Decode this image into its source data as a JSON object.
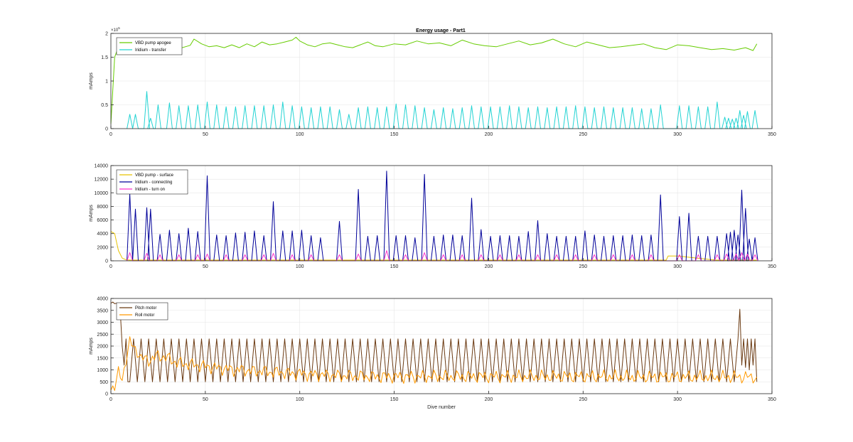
{
  "figure_title": "Energy usage - Part1",
  "colors": {
    "vbd_apogee": "#66cc00",
    "iridium_transfer": "#22d3d3",
    "vbd_surface": "#e6c200",
    "iridium_connecting": "#000099",
    "iridium_turn_on": "#ff33cc",
    "pitch_motor": "#6b3a12",
    "roll_motor": "#ff9900",
    "grid": "#e6e6e6",
    "axis": "#262626"
  },
  "chart_data": [
    {
      "type": "line",
      "title": "Energy usage - Part1",
      "xlabel": "",
      "ylabel": "mAmps",
      "xlim": [
        0,
        350
      ],
      "ylim": [
        0,
        200000
      ],
      "x_ticks": [
        0,
        50,
        100,
        150,
        200,
        250,
        300,
        350
      ],
      "y_ticks": [
        0,
        50000,
        100000,
        150000,
        200000
      ],
      "y_tick_labels": [
        "0",
        "0.5",
        "1",
        "1.5",
        "2"
      ],
      "y_exponent_label": "×10",
      "y_exponent_power": "5",
      "grid": true,
      "legend_position": "top-left",
      "series": [
        {
          "name": "VBD pump apogee",
          "pattern": "trend",
          "x": [
            0,
            2,
            4,
            8,
            12,
            18,
            24,
            30,
            36,
            42,
            44,
            48,
            52,
            56,
            60,
            64,
            68,
            72,
            76,
            80,
            84,
            88,
            92,
            96,
            98,
            100,
            104,
            108,
            112,
            116,
            120,
            124,
            128,
            132,
            136,
            140,
            144,
            150,
            156,
            162,
            168,
            174,
            180,
            186,
            192,
            198,
            204,
            210,
            216,
            222,
            228,
            234,
            240,
            246,
            252,
            258,
            264,
            270,
            276,
            282,
            288,
            294,
            300,
            306,
            312,
            318,
            324,
            330,
            336,
            340,
            342
          ],
          "y": [
            10000,
            150000,
            172000,
            168000,
            172000,
            175000,
            168000,
            172000,
            168000,
            175000,
            188000,
            178000,
            172000,
            174000,
            170000,
            176000,
            170000,
            178000,
            172000,
            182000,
            176000,
            178000,
            182000,
            186000,
            192000,
            184000,
            176000,
            172000,
            178000,
            180000,
            176000,
            172000,
            170000,
            176000,
            182000,
            174000,
            172000,
            178000,
            176000,
            184000,
            178000,
            180000,
            174000,
            186000,
            178000,
            174000,
            172000,
            178000,
            184000,
            176000,
            180000,
            188000,
            178000,
            172000,
            182000,
            176000,
            170000,
            172000,
            175000,
            178000,
            170000,
            166000,
            176000,
            174000,
            170000,
            166000,
            168000,
            165000,
            170000,
            164000,
            178000
          ]
        },
        {
          "name": "Iridium - transfer",
          "pattern": "spikes",
          "x": [
            10,
            13,
            19,
            21,
            25,
            31,
            36,
            41,
            46,
            51,
            56,
            61,
            66,
            71,
            76,
            81,
            86,
            91,
            96,
            101,
            106,
            111,
            116,
            121,
            126,
            131,
            136,
            141,
            146,
            151,
            156,
            161,
            166,
            171,
            176,
            181,
            186,
            191,
            196,
            201,
            206,
            211,
            216,
            221,
            226,
            231,
            236,
            241,
            246,
            251,
            256,
            261,
            266,
            271,
            276,
            281,
            286,
            291,
            301,
            306,
            311,
            316,
            321,
            325,
            327,
            329,
            331,
            333,
            335,
            337,
            341
          ],
          "y": [
            30000,
            30000,
            78000,
            22000,
            50000,
            54000,
            48000,
            48000,
            50000,
            56000,
            50000,
            46000,
            46000,
            48000,
            48000,
            48000,
            50000,
            56000,
            48000,
            46000,
            44000,
            46000,
            46000,
            40000,
            30000,
            44000,
            46000,
            44000,
            46000,
            52000,
            50000,
            48000,
            44000,
            40000,
            44000,
            42000,
            44000,
            48000,
            46000,
            46000,
            46000,
            48000,
            46000,
            44000,
            46000,
            44000,
            46000,
            46000,
            48000,
            46000,
            44000,
            46000,
            44000,
            44000,
            44000,
            42000,
            42000,
            50000,
            48000,
            48000,
            46000,
            46000,
            56000,
            24000,
            22000,
            20000,
            22000,
            38000,
            28000,
            36000,
            38000
          ]
        }
      ]
    },
    {
      "type": "line",
      "title": "",
      "xlabel": "",
      "ylabel": "mAmps",
      "xlim": [
        0,
        350
      ],
      "ylim": [
        0,
        14000
      ],
      "x_ticks": [
        0,
        50,
        100,
        150,
        200,
        250,
        300,
        350
      ],
      "y_ticks": [
        0,
        2000,
        4000,
        6000,
        8000,
        10000,
        12000,
        14000
      ],
      "y_tick_labels": [
        "0",
        "2000",
        "4000",
        "6000",
        "8000",
        "10000",
        "12000",
        "14000"
      ],
      "grid": true,
      "legend_position": "top-left",
      "series": [
        {
          "name": "VBD pump - surface",
          "pattern": "trend",
          "x": [
            0,
            2,
            4,
            6,
            8,
            10,
            20,
            40,
            60,
            80,
            100,
            120,
            140,
            160,
            180,
            200,
            220,
            240,
            260,
            280,
            294,
            295,
            300,
            320,
            342
          ],
          "y": [
            4300,
            4000,
            1500,
            400,
            150,
            100,
            100,
            100,
            100,
            100,
            100,
            100,
            100,
            100,
            100,
            100,
            100,
            100,
            100,
            100,
            100,
            700,
            700,
            100,
            100
          ]
        },
        {
          "name": "Iridium - connecting",
          "pattern": "spikes",
          "x": [
            10,
            13,
            19,
            21,
            26,
            31,
            36,
            41,
            46,
            51,
            56,
            61,
            66,
            71,
            76,
            81,
            86,
            91,
            96,
            101,
            106,
            111,
            121,
            131,
            136,
            141,
            146,
            151,
            156,
            161,
            166,
            171,
            176,
            181,
            186,
            191,
            196,
            201,
            206,
            211,
            216,
            221,
            226,
            231,
            236,
            241,
            246,
            251,
            256,
            261,
            266,
            271,
            276,
            281,
            286,
            291,
            301,
            306,
            311,
            316,
            321,
            326,
            328,
            330,
            332,
            334,
            336,
            338,
            341
          ],
          "y": [
            9800,
            7600,
            7800,
            7600,
            3900,
            4500,
            4000,
            4800,
            4300,
            12500,
            3800,
            3700,
            4100,
            4200,
            4400,
            3700,
            8700,
            4400,
            4400,
            4500,
            3700,
            3400,
            5800,
            10500,
            3600,
            3700,
            13200,
            3700,
            3700,
            3400,
            12700,
            3600,
            3800,
            3800,
            3700,
            9200,
            4600,
            3600,
            3700,
            3700,
            3600,
            4300,
            5900,
            4000,
            3600,
            3600,
            3600,
            4400,
            3800,
            3600,
            3700,
            3700,
            3800,
            3700,
            3800,
            9700,
            6500,
            7000,
            3600,
            3600,
            3600,
            4000,
            4200,
            4500,
            3800,
            10400,
            7700,
            3200,
            3400
          ]
        },
        {
          "name": "Iridium - turn on",
          "pattern": "spikes",
          "x": [
            10,
            19,
            26,
            36,
            46,
            51,
            61,
            71,
            81,
            86,
            96,
            106,
            121,
            131,
            146,
            156,
            166,
            176,
            186,
            196,
            206,
            216,
            226,
            236,
            246,
            256,
            266,
            276,
            286,
            301,
            311,
            321,
            326,
            331,
            334,
            337,
            341
          ],
          "y": [
            1200,
            1100,
            900,
            900,
            900,
            1000,
            900,
            900,
            900,
            1100,
            900,
            900,
            900,
            1000,
            1500,
            900,
            1200,
            900,
            900,
            900,
            900,
            900,
            900,
            900,
            900,
            900,
            900,
            900,
            900,
            900,
            900,
            900,
            1000,
            1000,
            1200,
            1000,
            900
          ]
        }
      ]
    },
    {
      "type": "line",
      "title": "",
      "xlabel": "Dive number",
      "ylabel": "mAmps",
      "xlim": [
        0,
        350
      ],
      "ylim": [
        0,
        4000
      ],
      "x_ticks": [
        0,
        50,
        100,
        150,
        200,
        250,
        300,
        350
      ],
      "y_ticks": [
        0,
        500,
        1000,
        1500,
        2000,
        2500,
        3000,
        3500,
        4000
      ],
      "y_tick_labels": [
        "0",
        "500",
        "1000",
        "1500",
        "2000",
        "2500",
        "3000",
        "3500",
        "4000"
      ],
      "grid": true,
      "legend_position": "top-left",
      "series": [
        {
          "name": "Pitch motor",
          "pattern": "zigzag",
          "x_start": 0,
          "x_end": 342,
          "low": 500,
          "high": 2300,
          "period": 4,
          "y_start": [
            3800,
            3850,
            3780,
            3800,
            3700,
            3400,
            2000,
            1200,
            2300,
            500
          ],
          "y_tail": [
            3550,
            1200,
            2300,
            1100,
            2300,
            1000,
            2300,
            1200,
            2300,
            500
          ]
        },
        {
          "name": "Roll motor",
          "pattern": "noisy",
          "x": [
            0,
            2,
            4,
            6,
            8,
            10,
            12,
            14,
            16,
            20,
            25,
            30,
            35,
            40,
            45,
            50,
            55,
            60,
            65,
            70,
            75,
            80,
            85,
            90,
            95,
            100,
            105,
            110,
            115,
            120,
            125,
            130,
            135,
            140,
            145,
            150,
            155,
            160,
            165,
            170,
            175,
            180,
            185,
            190,
            195,
            200,
            205,
            210,
            215,
            220,
            225,
            230,
            235,
            240,
            245,
            250,
            255,
            260,
            265,
            270,
            275,
            280,
            285,
            290,
            295,
            300,
            305,
            310,
            315,
            320,
            325,
            330,
            335,
            340,
            342
          ],
          "y": [
            150,
            400,
            900,
            500,
            1500,
            2200,
            1900,
            1800,
            1500,
            1400,
            1600,
            1500,
            1300,
            1250,
            1200,
            1150,
            1100,
            1050,
            1000,
            1000,
            950,
            950,
            900,
            900,
            850,
            850,
            800,
            800,
            780,
            760,
            750,
            740,
            730,
            720,
            720,
            720,
            720,
            720,
            720,
            720,
            720,
            720,
            720,
            720,
            720,
            720,
            720,
            720,
            720,
            720,
            720,
            720,
            720,
            720,
            720,
            720,
            720,
            720,
            720,
            700,
            700,
            700,
            700,
            700,
            700,
            700,
            700,
            700,
            700,
            700,
            700,
            700,
            700,
            700,
            700
          ]
        }
      ]
    }
  ]
}
